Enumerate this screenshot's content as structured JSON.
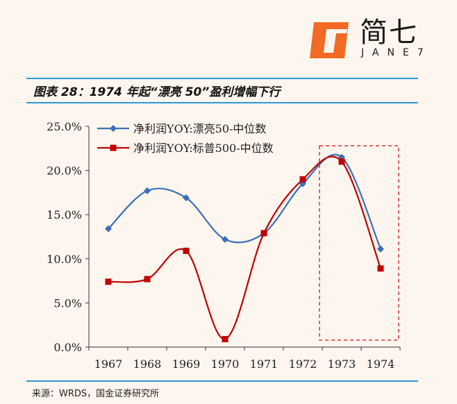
{
  "brand": {
    "name": "简七",
    "sub": "JANE7"
  },
  "title": "图表 28：1974 年起“漂亮 50”盈利增幅下行",
  "source": "来源：WRDS，国金证券研究所",
  "colors": {
    "series1": "#3b6fb6",
    "series2": "#c00000",
    "highlight": "#e0303a",
    "rule": "#2e97d6"
  },
  "chart_data": {
    "type": "line",
    "title": "",
    "xlabel": "",
    "ylabel": "",
    "categories": [
      "1967",
      "1968",
      "1969",
      "1970",
      "1971",
      "1972",
      "1973",
      "1974"
    ],
    "ylim": [
      0,
      25
    ],
    "yticks": [
      "0.0%",
      "5.0%",
      "10.0%",
      "15.0%",
      "20.0%",
      "25.0%"
    ],
    "series": [
      {
        "name": "净利润YOY:漂亮50-中位数",
        "marker": "diamond",
        "values": [
          13.4,
          17.7,
          16.9,
          12.2,
          12.9,
          18.5,
          21.5,
          11.1
        ]
      },
      {
        "name": "净利润YOY:标普500-中位数",
        "marker": "square",
        "values": [
          7.4,
          7.7,
          10.9,
          0.9,
          12.9,
          19.0,
          21.0,
          8.9
        ]
      }
    ],
    "highlight": {
      "from": "1973",
      "to": "1974"
    },
    "legend": "top-left",
    "grid": false
  }
}
